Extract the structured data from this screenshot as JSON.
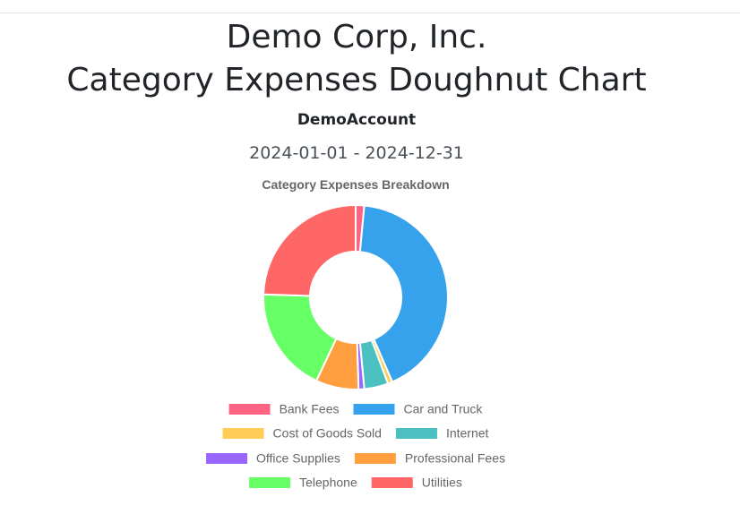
{
  "header": {
    "company": "Demo Corp, Inc.",
    "report_title": "Category Expenses Doughnut Chart",
    "account": "DemoAccount",
    "date_range": "2024-01-01 - 2024-12-31"
  },
  "chart_data": {
    "type": "doughnut",
    "title": "Category Expenses Breakdown",
    "legend_position": "bottom",
    "categories": [
      "Bank Fees",
      "Car and Truck",
      "Cost of Goods Sold",
      "Internet",
      "Office Supplies",
      "Professional Fees",
      "Telephone",
      "Utilities"
    ],
    "values": [
      1.5,
      42.0,
      0.8,
      4.2,
      1.0,
      7.5,
      18.5,
      24.5
    ],
    "colors": [
      "#ff6384",
      "#36a2eb",
      "#ffcd56",
      "#4bc0c0",
      "#9966ff",
      "#ff9f40",
      "#66ff66",
      "#ff6666"
    ]
  }
}
